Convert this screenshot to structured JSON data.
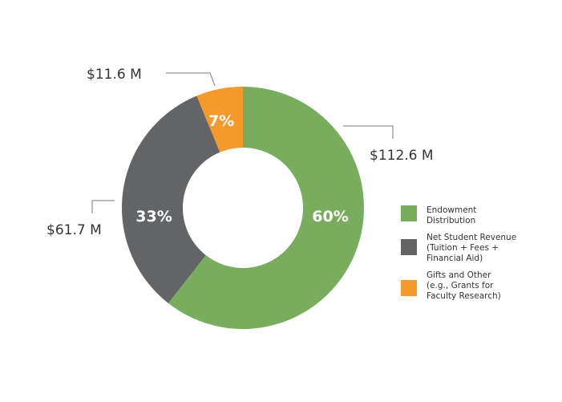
{
  "chart_data": {
    "type": "pie",
    "variant": "donut",
    "title": "",
    "categories": [
      "Endowment Distribution",
      "Net Student Revenue (Tuition + Fees + Financial Aid)",
      "Gifts and Other (e.g., Grants for Faculty Research)"
    ],
    "values": [
      112.6,
      61.7,
      11.6
    ],
    "percentages": [
      60,
      33,
      7
    ],
    "value_labels": [
      "$112.6 M",
      "$61.7 M",
      "$11.6 M"
    ],
    "percent_labels": [
      "60%",
      "33%",
      "7%"
    ],
    "colors": [
      "#78ad5e",
      "#636466",
      "#f7982a"
    ],
    "legend_position": "right"
  },
  "legend": [
    {
      "label": "Endowment\nDistribution",
      "color": "#78ad5e"
    },
    {
      "label": "Net Student Revenue\n(Tuition + Fees +\nFinancial Aid)",
      "color": "#636466"
    },
    {
      "label": "Gifts and Other\n(e.g., Grants for\nFaculty Research)",
      "color": "#f7982a"
    }
  ]
}
